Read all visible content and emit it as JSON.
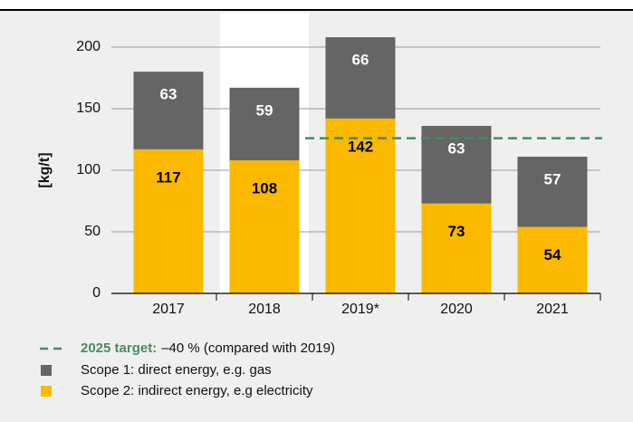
{
  "chart_data": {
    "type": "stacked_bar",
    "categories": [
      "2017",
      "2018",
      "2019*",
      "2020",
      "2021"
    ],
    "series": [
      {
        "name": "Scope 2: indirect energy, e.g electricity",
        "color": "#fbb900",
        "label_color": "#000000",
        "values": [
          117,
          108,
          142,
          73,
          54
        ]
      },
      {
        "name": "Scope 1: direct energy, e.g. gas",
        "color": "#656565",
        "label_color": "#ffffff",
        "values": [
          63,
          59,
          66,
          63,
          57
        ]
      }
    ],
    "y_label": "[kg/t]",
    "ylim": [
      0,
      200
    ],
    "yticks": [
      0,
      50,
      100,
      150,
      200
    ],
    "grid": true,
    "target": {
      "value": 126,
      "label": "2025 target:",
      "text": "–40 % (compared with 2019)",
      "color": "#4b8a5e",
      "from_category": 2
    }
  }
}
